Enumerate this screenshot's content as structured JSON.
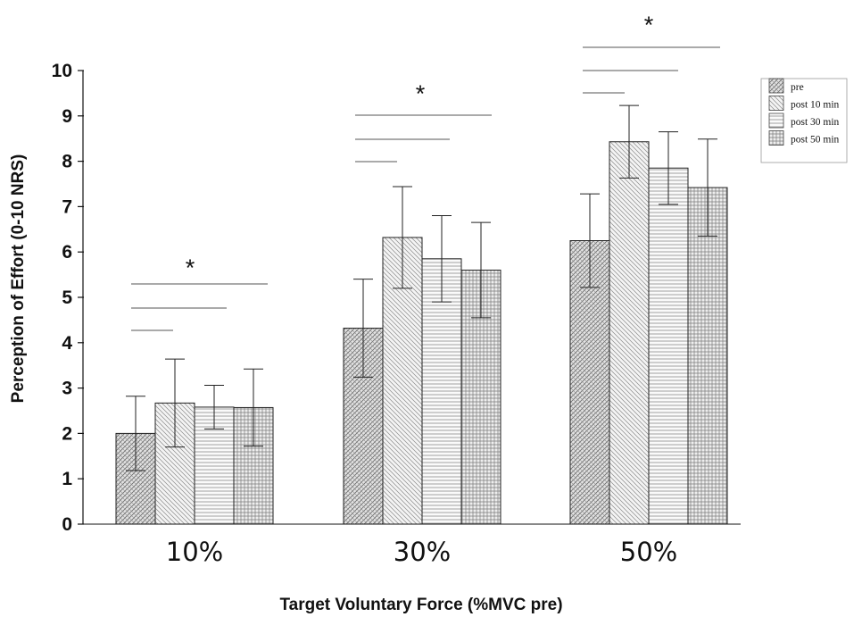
{
  "chart_data": {
    "type": "bar",
    "xlabel": "Target Voluntary Force (%MVC pre)",
    "ylabel": "Perception of Effort (0-10 NRS)",
    "ylim": [
      0,
      10
    ],
    "yticks": [
      "0",
      "1",
      "2",
      "3",
      "4",
      "5",
      "6",
      "7",
      "8",
      "9",
      "10"
    ],
    "categories": [
      "10%",
      "30%",
      "50%"
    ],
    "series": [
      {
        "name": "pre",
        "pattern": "crosshatch-dark",
        "values": [
          2.0,
          4.32,
          6.25
        ],
        "error": [
          0.82,
          1.08,
          1.03
        ]
      },
      {
        "name": "post 10 min",
        "pattern": "diagonal",
        "values": [
          2.67,
          6.32,
          8.43
        ],
        "error": [
          0.97,
          1.12,
          0.8
        ]
      },
      {
        "name": "post 30 min",
        "pattern": "horizontal",
        "values": [
          2.58,
          5.85,
          7.85
        ],
        "error": [
          0.48,
          0.95,
          0.8
        ]
      },
      {
        "name": "post 50 min",
        "pattern": "grid",
        "values": [
          2.57,
          5.6,
          7.42
        ],
        "error": [
          0.85,
          1.05,
          1.07
        ]
      }
    ],
    "significance": [
      {
        "category": "10%",
        "label": "*"
      },
      {
        "category": "30%",
        "label": "*"
      },
      {
        "category": "50%",
        "label": "*"
      }
    ],
    "legend_position": "top-right",
    "grid": false
  }
}
